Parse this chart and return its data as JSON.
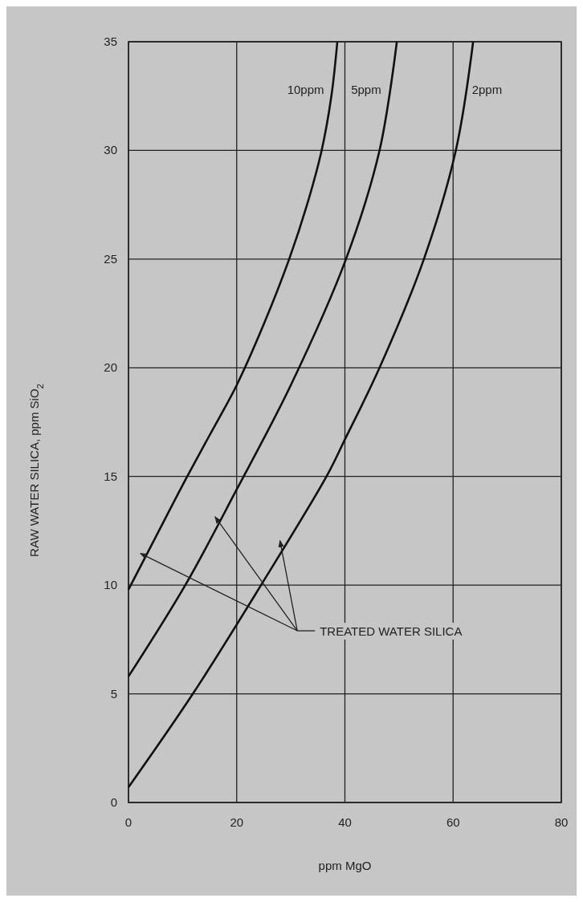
{
  "chart_data": {
    "type": "line",
    "xlabel": "ppm MgO",
    "ylabel": "RAW WATER SILICA, ppm SiO$_{2}$",
    "xlim": [
      0,
      80
    ],
    "xticks": [
      0,
      20,
      40,
      60,
      80
    ],
    "ylim": [
      0,
      35
    ],
    "yticks": [
      0,
      5,
      10,
      15,
      20,
      25,
      30,
      35
    ],
    "grid": true,
    "line_style": "solid",
    "series": [
      {
        "name": "10ppm",
        "color": "#111111",
        "x": [
          0,
          5,
          10,
          15,
          20,
          25,
          29.7,
          33,
          35.7,
          37.5,
          38.6
        ],
        "values": [
          9.8,
          12.2,
          14.6,
          16.9,
          19.2,
          22,
          25,
          27.5,
          30,
          32.5,
          35
        ]
      },
      {
        "name": "5ppm",
        "color": "#111111",
        "x": [
          0,
          10.5,
          20,
          30,
          40.2,
          46.4,
          49.6
        ],
        "values": [
          5.8,
          10,
          14.4,
          19.2,
          25,
          30,
          35
        ]
      },
      {
        "name": "2ppm",
        "color": "#111111",
        "x": [
          0,
          11.9,
          24.5,
          36.6,
          40,
          46.4,
          54.6,
          60.5,
          63.7
        ],
        "values": [
          0.7,
          5,
          10,
          15,
          16.7,
          20,
          25,
          30,
          35
        ]
      }
    ],
    "annotations": [
      "TREATED WATER SILICA"
    ]
  }
}
